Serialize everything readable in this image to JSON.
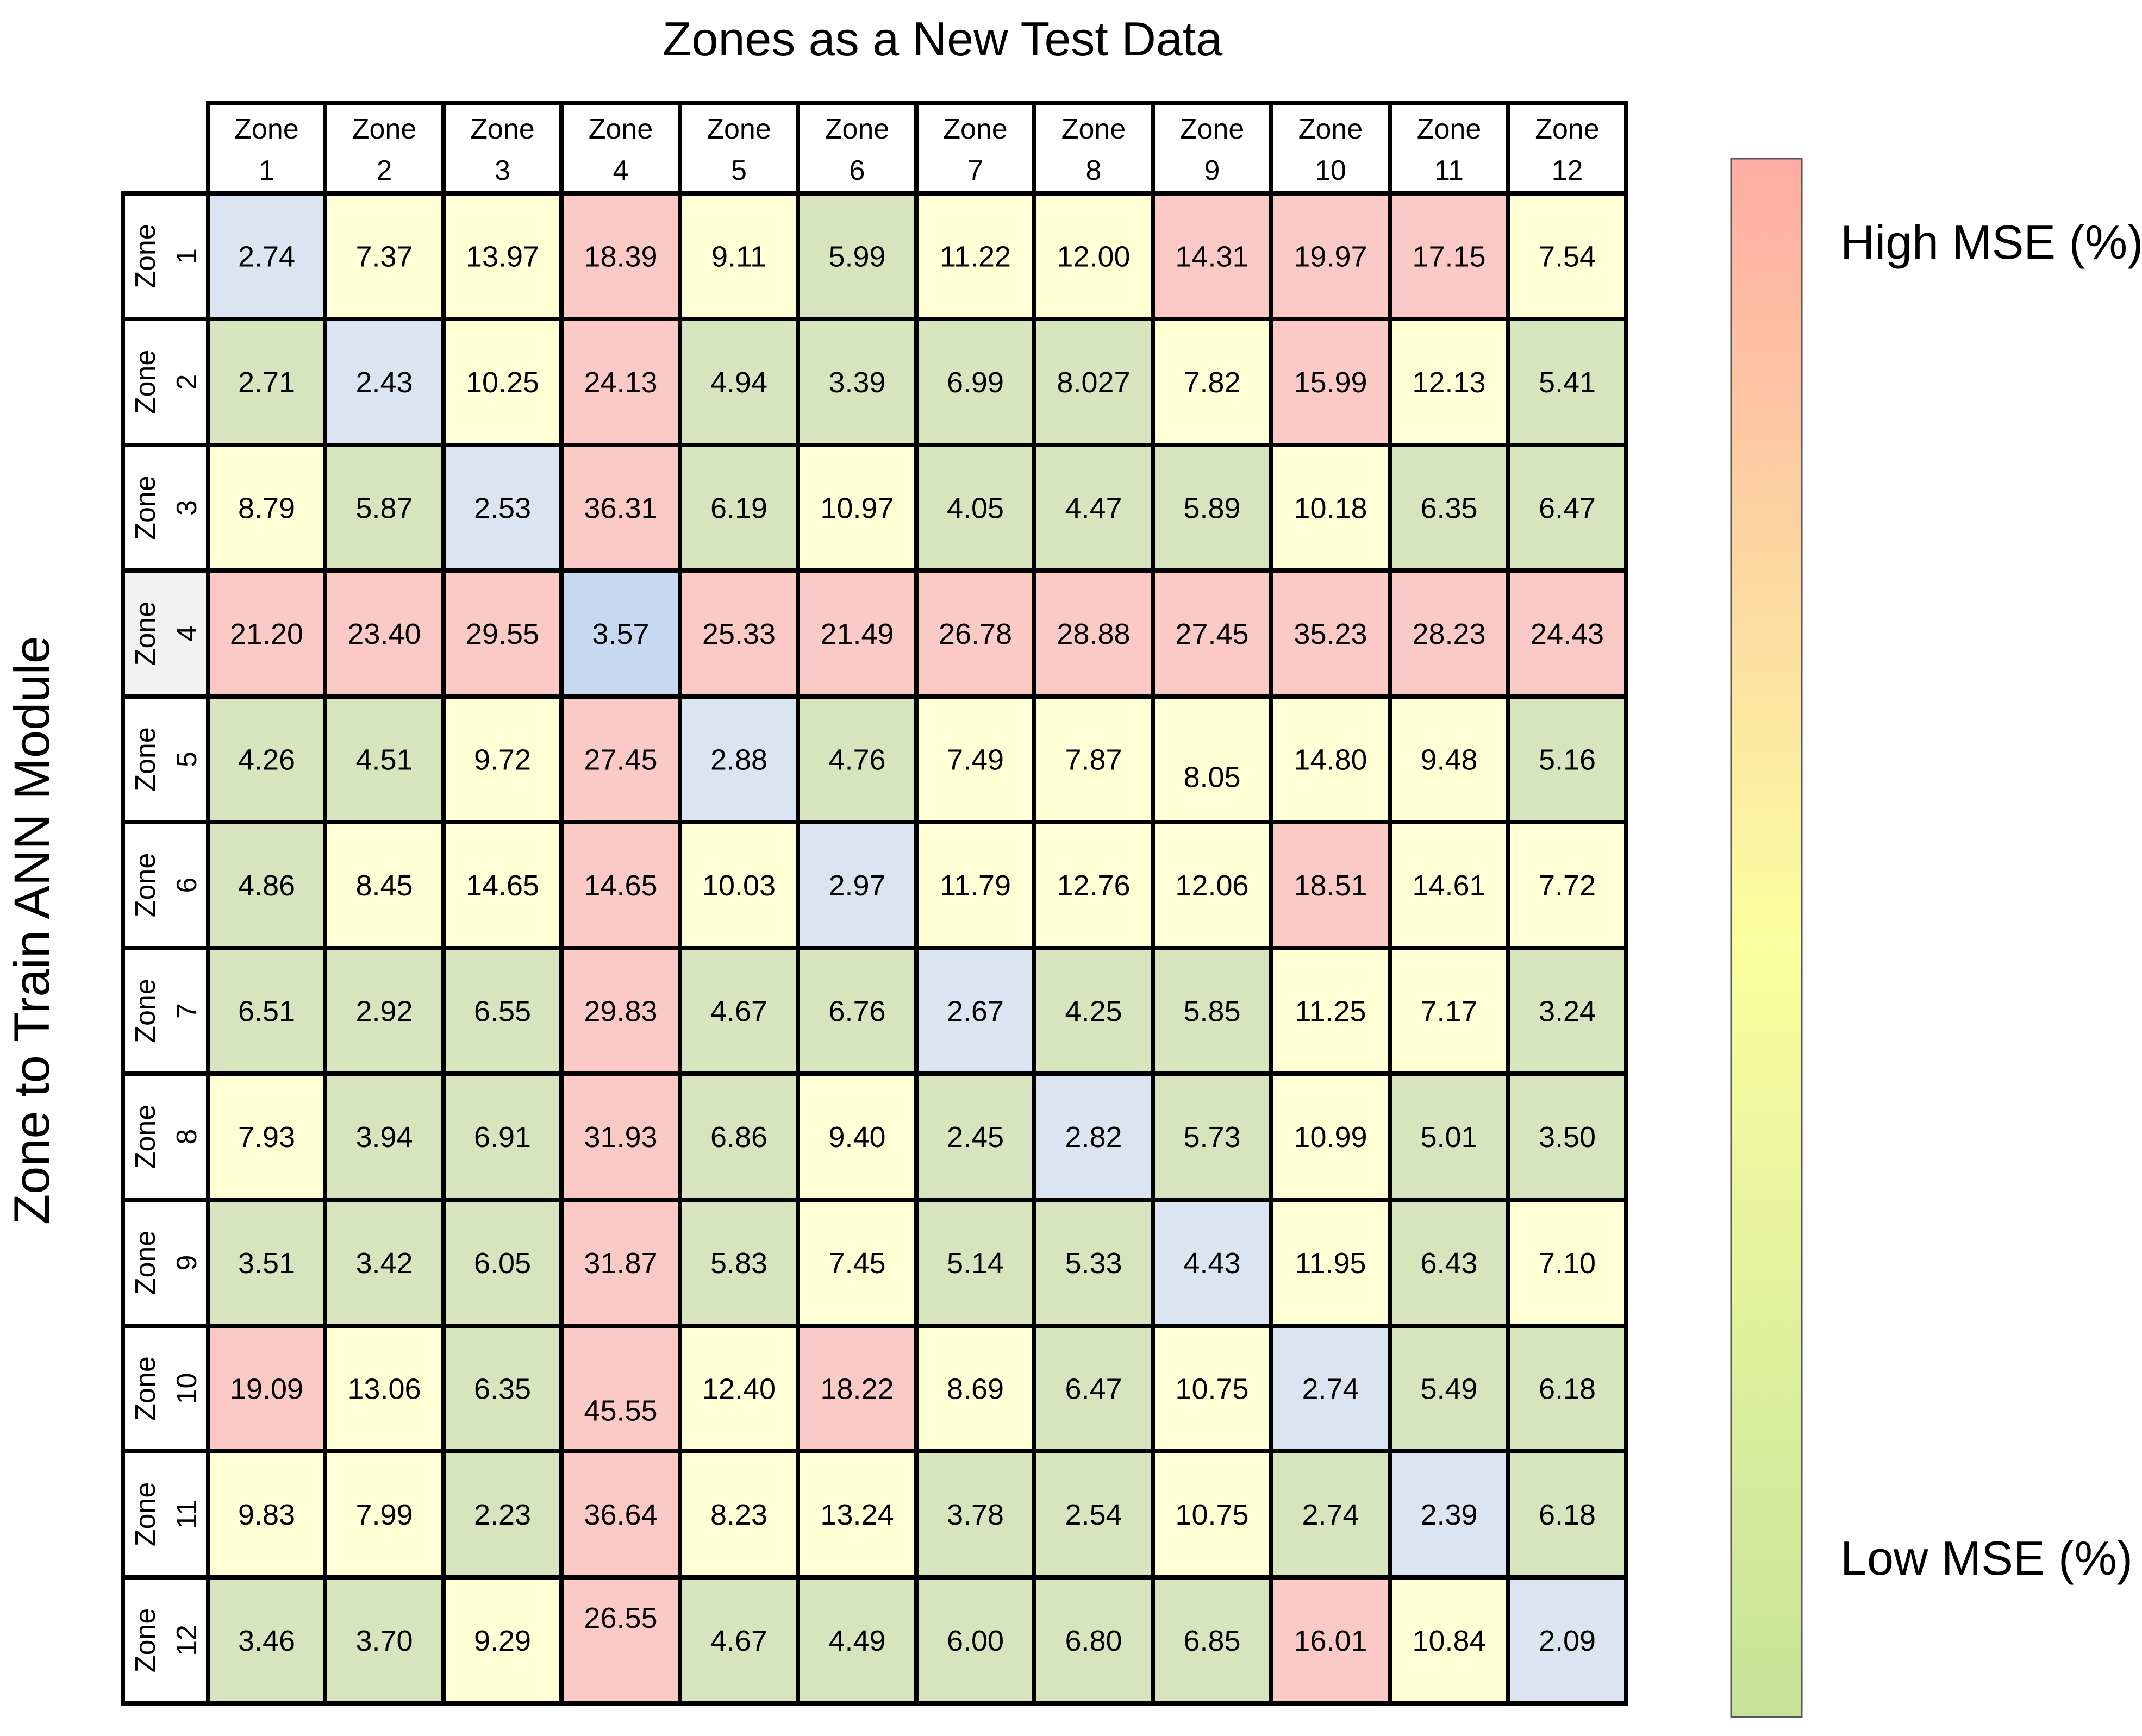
{
  "chart_data": {
    "type": "heatmap",
    "title": "Zones as a New Test Data",
    "ylabel": "Zone to Train ANN Module",
    "xlabel": "",
    "columns": [
      [
        "Zone",
        "1"
      ],
      [
        "Zone",
        "2"
      ],
      [
        "Zone",
        "3"
      ],
      [
        "Zone",
        "4"
      ],
      [
        "Zone",
        "5"
      ],
      [
        "Zone",
        "6"
      ],
      [
        "Zone",
        "7"
      ],
      [
        "Zone",
        "8"
      ],
      [
        "Zone",
        "9"
      ],
      [
        "Zone",
        "10"
      ],
      [
        "Zone",
        "11"
      ],
      [
        "Zone",
        "12"
      ]
    ],
    "rows": [
      [
        "Zone",
        "1"
      ],
      [
        "Zone",
        "2"
      ],
      [
        "Zone",
        "3"
      ],
      [
        "Zone",
        "4"
      ],
      [
        "Zone",
        "5"
      ],
      [
        "Zone",
        "6"
      ],
      [
        "Zone",
        "7"
      ],
      [
        "Zone",
        "8"
      ],
      [
        "Zone",
        "9"
      ],
      [
        "Zone",
        "10"
      ],
      [
        "Zone",
        "11"
      ],
      [
        "Zone",
        "12"
      ]
    ],
    "values": [
      [
        "2.74",
        "7.37",
        "13.97",
        "18.39",
        "9.11",
        "5.99",
        "11.22",
        "12.00",
        "14.31",
        "19.97",
        "17.15",
        "7.54"
      ],
      [
        "2.71",
        "2.43",
        "10.25",
        "24.13",
        "4.94",
        "3.39",
        "6.99",
        "8.027",
        "7.82",
        "15.99",
        "12.13",
        "5.41"
      ],
      [
        "8.79",
        "5.87",
        "2.53",
        "36.31",
        "6.19",
        "10.97",
        "4.05",
        "4.47",
        "5.89",
        "10.18",
        "6.35",
        "6.47"
      ],
      [
        "21.20",
        "23.40",
        "29.55",
        "3.57",
        "25.33",
        "21.49",
        "26.78",
        "28.88",
        "27.45",
        "35.23",
        "28.23",
        "24.43"
      ],
      [
        "4.26",
        "4.51",
        "9.72",
        "27.45",
        "2.88",
        "4.76",
        "7.49",
        "7.87",
        "8.05",
        "14.80",
        "9.48",
        "5.16"
      ],
      [
        "4.86",
        "8.45",
        "14.65",
        "14.65",
        "10.03",
        "2.97",
        "11.79",
        "12.76",
        "12.06",
        "18.51",
        "14.61",
        "7.72"
      ],
      [
        "6.51",
        "2.92",
        "6.55",
        "29.83",
        "4.67",
        "6.76",
        "2.67",
        "4.25",
        "5.85",
        "11.25",
        "7.17",
        "3.24"
      ],
      [
        "7.93",
        "3.94",
        "6.91",
        "31.93",
        "6.86",
        "9.40",
        "2.45",
        "2.82",
        "5.73",
        "10.99",
        "5.01",
        "3.50"
      ],
      [
        "3.51",
        "3.42",
        "6.05",
        "31.87",
        "5.83",
        "7.45",
        "5.14",
        "5.33",
        "4.43",
        "11.95",
        "6.43",
        "7.10"
      ],
      [
        "19.09",
        "13.06",
        "6.35",
        "45.55",
        "12.40",
        "18.22",
        "8.69",
        "6.47",
        "10.75",
        "2.74",
        "5.49",
        "6.18"
      ],
      [
        "9.83",
        "7.99",
        "2.23",
        "36.64",
        "8.23",
        "13.24",
        "3.78",
        "2.54",
        "10.75",
        "2.74",
        "2.39",
        "6.18"
      ],
      [
        "3.46",
        "3.70",
        "9.29",
        "26.55",
        "4.67",
        "4.49",
        "6.00",
        "6.80",
        "6.85",
        "16.01",
        "10.84",
        "2.09"
      ]
    ],
    "cell_categories": [
      [
        "diag",
        "yellow",
        "yellow",
        "red",
        "yellow",
        "green",
        "yellow",
        "yellow",
        "red",
        "red",
        "red",
        "yellow"
      ],
      [
        "green",
        "diag",
        "yellow",
        "red",
        "green",
        "green",
        "green",
        "green",
        "yellow",
        "red",
        "yellow",
        "green"
      ],
      [
        "yellow",
        "green",
        "diag",
        "red",
        "green",
        "yellow",
        "green",
        "green",
        "green",
        "yellow",
        "green",
        "green"
      ],
      [
        "red",
        "red",
        "red",
        "diag-strong",
        "red",
        "red",
        "red",
        "red",
        "red",
        "red",
        "red",
        "red"
      ],
      [
        "green",
        "green",
        "yellow",
        "red",
        "diag",
        "green",
        "yellow",
        "yellow",
        "yellow",
        "yellow",
        "yellow",
        "green"
      ],
      [
        "green",
        "yellow",
        "yellow",
        "red",
        "yellow",
        "diag",
        "yellow",
        "yellow",
        "yellow",
        "red",
        "yellow",
        "yellow"
      ],
      [
        "green",
        "green",
        "green",
        "red",
        "green",
        "green",
        "diag",
        "green",
        "green",
        "yellow",
        "yellow",
        "green"
      ],
      [
        "yellow",
        "green",
        "green",
        "red",
        "green",
        "yellow",
        "green",
        "diag",
        "green",
        "yellow",
        "green",
        "green"
      ],
      [
        "green",
        "green",
        "green",
        "red",
        "green",
        "yellow",
        "green",
        "green",
        "diag",
        "yellow",
        "green",
        "yellow"
      ],
      [
        "red",
        "yellow",
        "green",
        "red",
        "yellow",
        "red",
        "yellow",
        "green",
        "yellow",
        "diag",
        "green",
        "green"
      ],
      [
        "yellow",
        "yellow",
        "green",
        "red",
        "yellow",
        "yellow",
        "green",
        "green",
        "yellow",
        "green",
        "diag",
        "green"
      ],
      [
        "green",
        "green",
        "yellow",
        "red",
        "green",
        "green",
        "green",
        "green",
        "green",
        "red",
        "yellow",
        "diag"
      ]
    ],
    "colors": {
      "red": "#fccac6",
      "yellow": "#ffffd6",
      "green": "#d8e4bd",
      "diag": "#dbe5f1",
      "diag-strong": "#c6d9f0",
      "row-header-highlight": "#f2f2f2",
      "gradient-top": "#ffaca4",
      "gradient-middle": "#fbff9f",
      "gradient-bottom": "#c6e39a"
    },
    "highlighted_row_header": 3,
    "legend": {
      "type": "gradient",
      "placement": "right",
      "high_label": "High MSE (%)",
      "low_label": "Low MSE (%)"
    }
  }
}
